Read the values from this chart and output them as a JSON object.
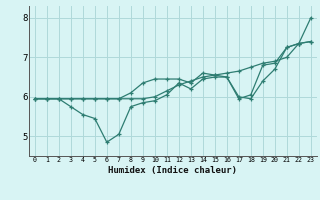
{
  "xlabel": "Humidex (Indice chaleur)",
  "x_values": [
    0,
    1,
    2,
    3,
    4,
    5,
    6,
    7,
    8,
    9,
    10,
    11,
    12,
    13,
    14,
    15,
    16,
    17,
    18,
    19,
    20,
    21,
    22,
    23
  ],
  "line1_y": [
    5.95,
    5.95,
    5.95,
    5.75,
    5.55,
    5.45,
    4.85,
    5.05,
    5.75,
    5.85,
    5.9,
    6.05,
    6.35,
    6.2,
    6.45,
    6.5,
    6.5,
    5.95,
    6.05,
    6.8,
    6.85,
    7.25,
    7.35,
    7.4
  ],
  "line2_y": [
    5.95,
    5.95,
    5.95,
    5.95,
    5.95,
    5.95,
    5.95,
    5.95,
    5.95,
    5.95,
    6.0,
    6.15,
    6.3,
    6.4,
    6.5,
    6.55,
    6.6,
    6.65,
    6.75,
    6.85,
    6.9,
    7.0,
    7.35,
    7.4
  ],
  "line3_y": [
    5.95,
    5.95,
    5.95,
    5.95,
    5.95,
    5.95,
    5.95,
    5.95,
    6.1,
    6.35,
    6.45,
    6.45,
    6.45,
    6.35,
    6.6,
    6.55,
    6.5,
    6.0,
    5.95,
    6.4,
    6.7,
    7.25,
    7.35,
    8.0
  ],
  "line_color": "#2e7d72",
  "bg_color": "#d8f4f4",
  "grid_color": "#afd9da",
  "ylim": [
    4.5,
    8.3
  ],
  "xlim": [
    -0.5,
    23.5
  ],
  "yticks": [
    5,
    6,
    7,
    8
  ],
  "xticks": [
    0,
    1,
    2,
    3,
    4,
    5,
    6,
    7,
    8,
    9,
    10,
    11,
    12,
    13,
    14,
    15,
    16,
    17,
    18,
    19,
    20,
    21,
    22,
    23
  ]
}
